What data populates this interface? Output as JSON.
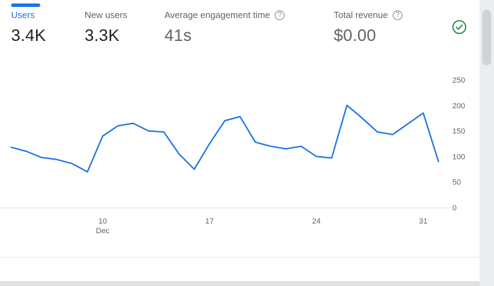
{
  "colors": {
    "accent": "#1a73e8",
    "line": "#1a73e8",
    "success_green": "#1e8e3e",
    "label_gray": "#5f6368",
    "value_dark": "#202124",
    "axis_label_gray": "#5f6368",
    "axis_line_gray": "#dfe1e5"
  },
  "help_glyph": "?",
  "metrics": [
    {
      "label": "Users",
      "value": "3.4K",
      "active": true,
      "help": false
    },
    {
      "label": "New users",
      "value": "3.3K",
      "active": false,
      "help": false
    },
    {
      "label": "Average engagement time",
      "value": "41s",
      "active": false,
      "help": true
    },
    {
      "label": "Total revenue",
      "value": "$0.00",
      "active": false,
      "help": true
    }
  ],
  "status_icon": "check-circle",
  "chart_data": {
    "type": "line",
    "title": "",
    "xlabel": "",
    "ylabel": "",
    "x": [
      "Dec 4",
      "Dec 5",
      "Dec 6",
      "Dec 7",
      "Dec 8",
      "Dec 9",
      "Dec 10",
      "Dec 11",
      "Dec 12",
      "Dec 13",
      "Dec 14",
      "Dec 15",
      "Dec 16",
      "Dec 17",
      "Dec 18",
      "Dec 19",
      "Dec 20",
      "Dec 21",
      "Dec 22",
      "Dec 23",
      "Dec 24",
      "Dec 25",
      "Dec 26",
      "Dec 27",
      "Dec 28",
      "Dec 29",
      "Dec 30",
      "Dec 31",
      "Jan 1"
    ],
    "series": [
      {
        "name": "Users",
        "color": "#1a73e8",
        "values": [
          118,
          110,
          98,
          94,
          86,
          70,
          140,
          160,
          165,
          150,
          148,
          105,
          75,
          125,
          170,
          178,
          128,
          120,
          115,
          120,
          100,
          97,
          200,
          175,
          148,
          143,
          164,
          185,
          90
        ]
      }
    ],
    "ylim": [
      0,
      250
    ],
    "y_ticks": [
      0,
      50,
      100,
      150,
      200,
      250
    ],
    "y_axis_position": "right",
    "x_ticks": [
      {
        "index": 6,
        "label": "10",
        "sublabel": "Dec"
      },
      {
        "index": 13,
        "label": "17",
        "sublabel": ""
      },
      {
        "index": 20,
        "label": "24",
        "sublabel": ""
      },
      {
        "index": 27,
        "label": "31",
        "sublabel": ""
      }
    ],
    "grid": false,
    "legend": "none"
  }
}
